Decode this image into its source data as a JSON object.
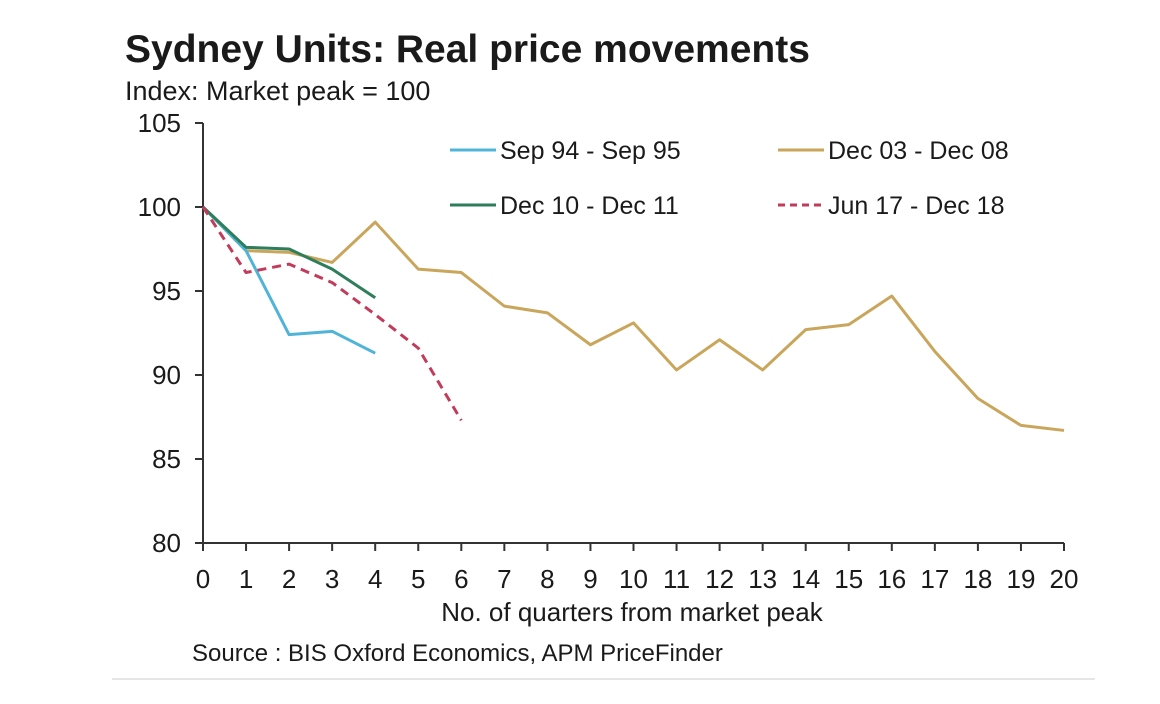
{
  "chart_data": {
    "type": "line",
    "title": "Sydney Units: Real price movements",
    "subtitle": "Index: Market peak = 100",
    "xlabel": "No. of quarters from market peak",
    "ylabel": "",
    "source": "Source : BIS Oxford Economics, APM PriceFinder",
    "xlim": [
      0,
      20
    ],
    "ylim": [
      80,
      105
    ],
    "x_ticks": [
      "0",
      "1",
      "2",
      "3",
      "4",
      "5",
      "6",
      "7",
      "8",
      "9",
      "10",
      "11",
      "12",
      "13",
      "14",
      "15",
      "16",
      "17",
      "18",
      "19",
      "20"
    ],
    "y_ticks": [
      "80",
      "85",
      "90",
      "95",
      "100",
      "105"
    ],
    "grid": false,
    "legend_position": "top-right",
    "series": [
      {
        "name": "Sep 94 - Sep 95",
        "color": "#4fb4d8",
        "dash": "solid",
        "x": [
          0,
          1,
          2,
          3,
          4
        ],
        "values": [
          100,
          97.4,
          92.4,
          92.6,
          91.3
        ]
      },
      {
        "name": "Dec 03 - Dec 08",
        "color": "#c9a65b",
        "dash": "solid",
        "x": [
          0,
          1,
          2,
          3,
          4,
          5,
          6,
          7,
          8,
          9,
          10,
          11,
          12,
          13,
          14,
          15,
          16,
          17,
          18,
          19,
          20
        ],
        "values": [
          100,
          97.4,
          97.3,
          96.7,
          99.1,
          96.3,
          96.1,
          94.1,
          93.7,
          91.8,
          93.1,
          90.3,
          92.1,
          90.3,
          92.7,
          93.0,
          94.7,
          91.4,
          88.6,
          87.0,
          86.7
        ]
      },
      {
        "name": "Dec 10 - Dec 11",
        "color": "#2e7d5b",
        "dash": "solid",
        "x": [
          0,
          1,
          2,
          3,
          4
        ],
        "values": [
          100,
          97.6,
          97.5,
          96.3,
          94.6
        ]
      },
      {
        "name": "Jun 17 - Dec 18",
        "color": "#c23b5a",
        "dash": "dashed",
        "x": [
          0,
          1,
          2,
          3,
          4,
          5,
          6
        ],
        "values": [
          100,
          96.1,
          96.6,
          95.5,
          93.6,
          91.6,
          87.3
        ]
      }
    ]
  }
}
